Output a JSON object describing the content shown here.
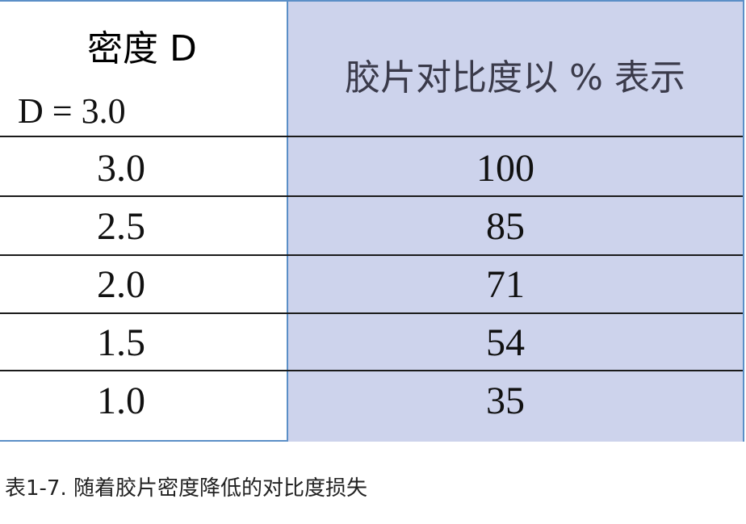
{
  "table": {
    "header": {
      "left_title": "密度 D",
      "left_sub": "D = 3.0",
      "right_title": "胶片对比度以 % 表示"
    },
    "rows": [
      {
        "density": "3.0",
        "contrast": "100"
      },
      {
        "density": "2.5",
        "contrast": "85"
      },
      {
        "density": "2.0",
        "contrast": "71"
      },
      {
        "density": "1.5",
        "contrast": "54"
      },
      {
        "density": "1.0",
        "contrast": "35"
      }
    ]
  },
  "caption": "表1-7. 随着胶片密度降低的对比度损失",
  "colors": {
    "right_column_bg": "#cdd3ec",
    "border": "#5b8fc7"
  }
}
